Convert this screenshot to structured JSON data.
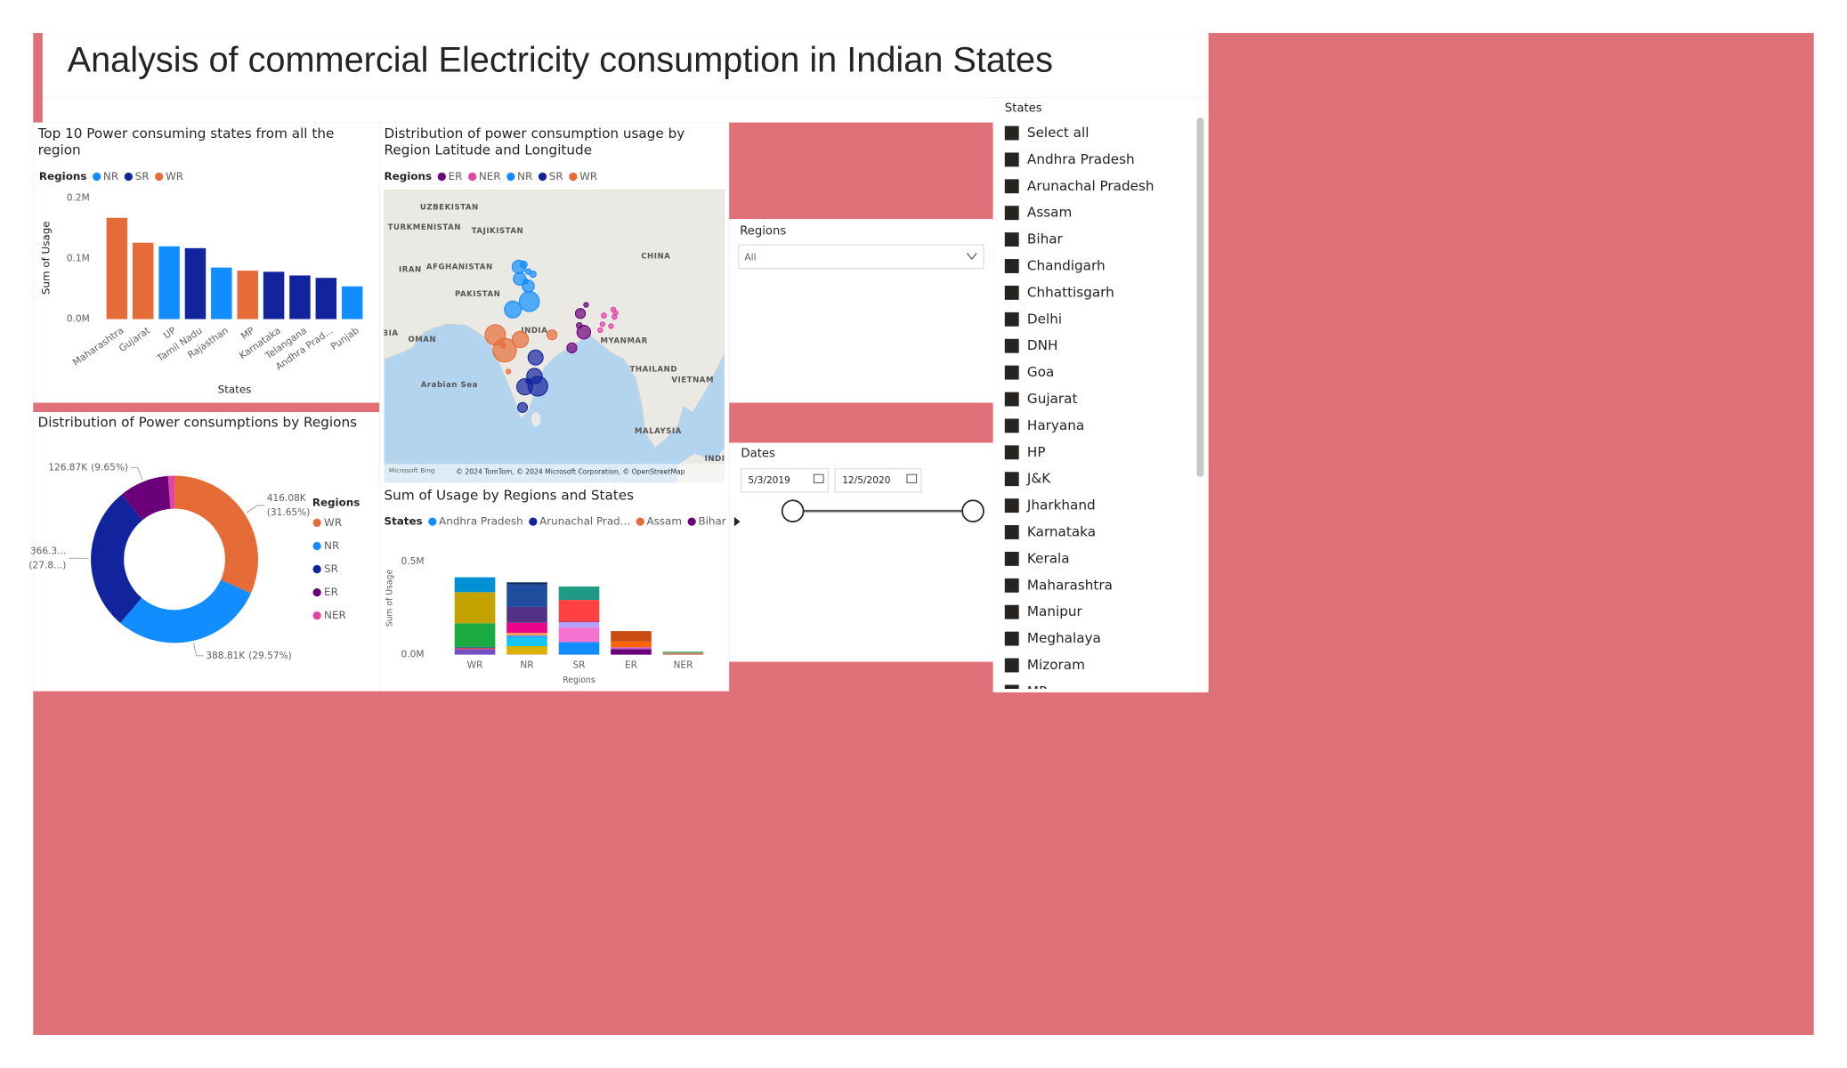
{
  "title": "Analysis of commercial Electricity consumption in Indian States",
  "chart_data": [
    {
      "type": "bar",
      "title": "Top 10 Power consuming states from all the region",
      "legend_title": "Regions",
      "xlabel": "States",
      "ylabel": "Sum of Usage",
      "categories": [
        "Maharashtra",
        "Gujarat",
        "UP",
        "Tamil Nadu",
        "Rajasthan",
        "MP",
        "Karnataka",
        "Telangana",
        "Andhra Prad...",
        "Punjab"
      ],
      "series": [
        {
          "name": "NR",
          "color": "#118dff",
          "values": [
            null,
            null,
            120000,
            null,
            85000,
            null,
            null,
            null,
            null,
            54000
          ]
        },
        {
          "name": "SR",
          "color": "#12239e",
          "values": [
            null,
            null,
            null,
            117000,
            null,
            null,
            78000,
            72000,
            68000,
            null
          ]
        },
        {
          "name": "WR",
          "color": "#e66c37",
          "values": [
            167000,
            126000,
            null,
            null,
            null,
            80000,
            null,
            null,
            null,
            null
          ]
        }
      ],
      "ylim": [
        0,
        200000
      ],
      "yticks": [
        {
          "value": 0,
          "label": "0.0M"
        },
        {
          "value": 100000,
          "label": "0.1M"
        },
        {
          "value": 200000,
          "label": "0.2M"
        }
      ]
    },
    {
      "type": "map",
      "title": "Distribution of power consumption usage by Region Latitude and Longitude",
      "legend_title": "Regions",
      "xlim": [
        54,
        114
      ],
      "ylim": [
        -2,
        42
      ],
      "series": [
        {
          "name": "ER",
          "color": "#6b007b",
          "x": [
            88.6,
            88.4,
            87.1,
            89.6,
            89.2
          ],
          "y": [
            23.4,
            21.6,
            18.25,
            24.7,
            20.6
          ],
          "size": [
            30000,
            10000,
            30000,
            1000,
            55870
          ]
        },
        {
          "name": "NER",
          "color": "#e044a7",
          "x": [
            94.4,
            92.75,
            94.6,
            92.5,
            94.0,
            94.8,
            92.1
          ],
          "y": [
            24.0,
            23.1,
            22.9,
            21.8,
            21.5,
            23.5,
            20.9
          ],
          "size": [
            1000,
            8000,
            1000,
            2500,
            600,
            700,
            2700
          ]
        },
        {
          "name": "NR",
          "color": "#118dff",
          "x": [
            79.0,
            79.4,
            77.9,
            79.4,
            78.6,
            77.75,
            76.7,
            79.6,
            80.25
          ],
          "y": [
            28.25,
            27.5,
            28.6,
            29.7,
            30.75,
            30.4,
            24.0,
            25.2,
            29.3
          ],
          "size": [
            1500,
            44310,
            48000,
            9000,
            15000,
            54000,
            85000,
            120000,
            12000
          ]
        },
        {
          "name": "SR",
          "color": "#12239e",
          "x": [
            80.7,
            78.8,
            78.4,
            79.4,
            81.1,
            80.5
          ],
          "y": [
            16.8,
            12.4,
            9.3,
            13.25,
            12.5,
            14.0
          ],
          "size": [
            68000,
            78000,
            28800,
            2500,
            117000,
            72000
          ]
        },
        {
          "name": "WR",
          "color": "#e66c37",
          "x": [
            83.6,
            75.0,
            75.9,
            73.6,
            75.25,
            78.0
          ],
          "y": [
            20.2,
            18.6,
            14.7,
            20.2,
            17.9,
            19.5
          ],
          "size": [
            30000,
            7000,
            6080,
            126000,
            167000,
            80000
          ]
        }
      ],
      "map_labels": [
        {
          "text": "UZBEKISTAN",
          "lon": 65.5,
          "lat": 39.3
        },
        {
          "text": "TURKMENISTAN",
          "lon": 61.1,
          "lat": 36.3
        },
        {
          "text": "TAJIKISTAN",
          "lon": 74.0,
          "lat": 35.8
        },
        {
          "text": "CHINA",
          "lon": 101.9,
          "lat": 32.0
        },
        {
          "text": "IRAN",
          "lon": 58.6,
          "lat": 30.0
        },
        {
          "text": "AFGHANISTAN",
          "lon": 67.3,
          "lat": 30.4
        },
        {
          "text": "PAKISTAN",
          "lon": 70.5,
          "lat": 26.3
        },
        {
          "text": "INDIA",
          "lon": 80.5,
          "lat": 20.8
        },
        {
          "text": "BIA",
          "lon": 55.1,
          "lat": 20.4
        },
        {
          "text": "OMAN",
          "lon": 60.7,
          "lat": 19.5
        },
        {
          "text": "MYANMAR",
          "lon": 96.3,
          "lat": 19.3
        },
        {
          "text": "THAILAND",
          "lon": 101.5,
          "lat": 15.0
        },
        {
          "text": "VIETNAM",
          "lon": 108.4,
          "lat": 13.4
        },
        {
          "text": "Arabian Sea",
          "lon": 65.5,
          "lat": 12.7
        },
        {
          "text": "MALAYSIA",
          "lon": 102.3,
          "lat": 5.75
        },
        {
          "text": "INDI",
          "lon": 112.3,
          "lat": 1.6
        }
      ],
      "attribution": "© 2024 TomTom, © 2024 Microsoft Corporation, © OpenStreetMap",
      "provider": "Microsoft Bing"
    },
    {
      "type": "donut",
      "title": "Distribution of Power consumptions by Regions",
      "legend_title": "Regions",
      "categories": [
        "WR",
        "NR",
        "SR",
        "ER",
        "NER"
      ],
      "colors": [
        "#e66c37",
        "#118dff",
        "#12239e",
        "#6b007b",
        "#e044a7"
      ],
      "values": [
        416.08,
        388.81,
        366.3,
        126.87,
        16.5
      ],
      "value_labels": [
        "416.08K",
        "388.81K",
        "366.3...",
        "126.87K",
        null
      ],
      "percent_labels": [
        "(31.65%)",
        "(29.57%)",
        "(27.8...)",
        "(9.65%)",
        null
      ]
    },
    {
      "type": "stacked-bar",
      "title": "Sum of Usage by Regions and States",
      "legend_title": "States",
      "xlabel": "Regions",
      "ylabel": "Sum of Usage",
      "categories": [
        "WR",
        "NR",
        "SR",
        "ER",
        "NER"
      ],
      "series": [
        {
          "name": "Andhra Pradesh",
          "color": "#118dff",
          "values": [
            null,
            null,
            68000,
            null,
            null
          ]
        },
        {
          "name": "Arunachal Prad...",
          "color": "#12239e",
          "values": [
            null,
            null,
            null,
            null,
            1000
          ]
        },
        {
          "name": "Assam",
          "color": "#e66c37",
          "values": [
            null,
            null,
            null,
            null,
            8000
          ]
        },
        {
          "name": "Bihar",
          "color": "#6b007b",
          "values": [
            null,
            null,
            null,
            30000,
            null
          ]
        },
        {
          "color": "#e044a7",
          "values": [
            null,
            1500,
            null,
            null,
            null
          ]
        },
        {
          "color": "#744ec2",
          "values": [
            30000,
            null,
            null,
            null,
            null
          ]
        },
        {
          "color": "#d9b300",
          "values": [
            null,
            44310,
            null,
            null,
            null
          ]
        },
        {
          "color": "#d64550",
          "values": [
            7000,
            null,
            null,
            null,
            null
          ]
        },
        {
          "color": "#197278",
          "values": [
            6080,
            null,
            null,
            null,
            null
          ]
        },
        {
          "color": "#1aab40",
          "values": [
            126000,
            null,
            null,
            null,
            null
          ]
        },
        {
          "color": "#15c6f4",
          "values": [
            null,
            48000,
            null,
            null,
            null
          ]
        },
        {
          "color": "#4092ff",
          "values": [
            null,
            9000,
            null,
            null,
            null
          ]
        },
        {
          "color": "#ffa058",
          "values": [
            null,
            15000,
            null,
            null,
            null
          ]
        },
        {
          "color": "#be5dc9",
          "values": [
            null,
            null,
            null,
            10000,
            null
          ]
        },
        {
          "color": "#f472d0",
          "values": [
            null,
            null,
            78000,
            null,
            null
          ]
        },
        {
          "color": "#b5a1ff",
          "values": [
            null,
            null,
            28800,
            null,
            null
          ]
        },
        {
          "color": "#c4a200",
          "values": [
            167000,
            null,
            null,
            null,
            null
          ]
        },
        {
          "color": "#ff8080",
          "values": [
            null,
            null,
            null,
            null,
            1000
          ]
        },
        {
          "color": "#00dbbc",
          "values": [
            null,
            null,
            null,
            null,
            2500
          ]
        },
        {
          "color": "#5bd667",
          "values": [
            null,
            null,
            null,
            null,
            600
          ]
        },
        {
          "color": "#0091d5",
          "values": [
            80000,
            null,
            null,
            null,
            null
          ]
        },
        {
          "color": "#4668c5",
          "values": [
            null,
            null,
            null,
            null,
            700
          ]
        },
        {
          "color": "#ff6300",
          "values": [
            null,
            null,
            null,
            30000,
            null
          ]
        },
        {
          "color": "#99008a",
          "values": [
            null,
            null,
            2500,
            null,
            null
          ]
        },
        {
          "color": "#ec008c",
          "values": [
            null,
            54000,
            null,
            null,
            null
          ]
        },
        {
          "color": "#533285",
          "values": [
            null,
            85000,
            null,
            null,
            null
          ]
        },
        {
          "color": "#99700a",
          "values": [
            null,
            null,
            null,
            1000,
            null
          ]
        },
        {
          "color": "#ff4141",
          "values": [
            null,
            null,
            117000,
            null,
            null
          ]
        },
        {
          "color": "#1f9a85",
          "values": [
            null,
            null,
            72000,
            null,
            null
          ]
        },
        {
          "color": "#25891c",
          "values": [
            null,
            null,
            null,
            null,
            2700
          ]
        },
        {
          "color": "#1f4e9e",
          "values": [
            null,
            120000,
            null,
            null,
            null
          ]
        },
        {
          "color": "#0b2a5c",
          "values": [
            null,
            12000,
            null,
            null,
            null
          ]
        },
        {
          "color": "#c84b12",
          "values": [
            null,
            null,
            null,
            55870,
            null
          ]
        }
      ],
      "ylim": [
        0,
        500000
      ],
      "yticks": [
        {
          "value": 0,
          "label": "0.0M"
        },
        {
          "value": 500000,
          "label": "0.5M"
        }
      ]
    }
  ],
  "slicers": {
    "regions": {
      "label": "Regions",
      "value": "All"
    },
    "dates": {
      "label": "Dates",
      "start": "5/3/2019",
      "end": "12/5/2020"
    },
    "states": {
      "label": "States",
      "items": [
        "Select all",
        "Andhra Pradesh",
        "Arunachal Pradesh",
        "Assam",
        "Bihar",
        "Chandigarh",
        "Chhattisgarh",
        "Delhi",
        "DNH",
        "Goa",
        "Gujarat",
        "Haryana",
        "HP",
        "J&K",
        "Jharkhand",
        "Karnataka",
        "Kerala",
        "Maharashtra",
        "Manipur",
        "Meghalaya",
        "Mizoram",
        "MP"
      ]
    }
  }
}
